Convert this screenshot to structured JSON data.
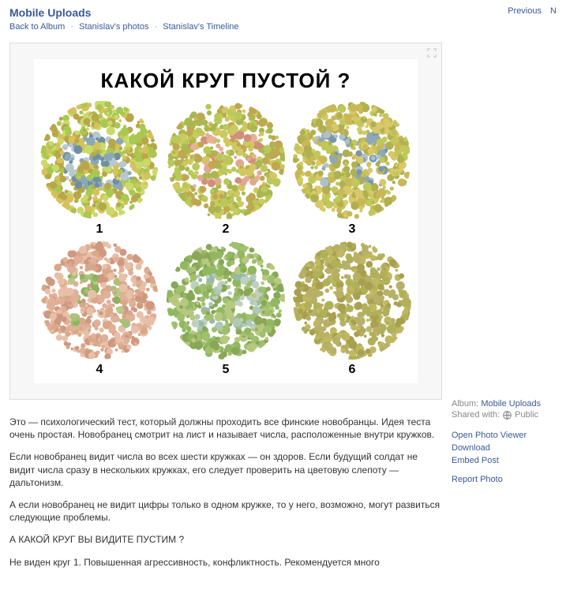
{
  "header": {
    "title": "Mobile Uploads",
    "breadcrumb": {
      "back": "Back to Album",
      "photos": "Stanislav's photos",
      "timeline": "Stanislav's Timeline"
    },
    "nav": {
      "previous": "Previous",
      "next": "N"
    }
  },
  "figure": {
    "title": "КАКОЙ КРУГ ПУСТОЙ ?",
    "plates": [
      {
        "label": "1",
        "digit": "6",
        "bg_colors": [
          "#c9d96a",
          "#a8c84f",
          "#d6c15c",
          "#b8a74a"
        ],
        "fg_colors": [
          "#8aa8b8",
          "#b8c8d0",
          "#6f8fa0"
        ]
      },
      {
        "label": "2",
        "digit": "23",
        "bg_colors": [
          "#b8c95a",
          "#d0c860",
          "#a8b84f",
          "#c0a850"
        ],
        "fg_colors": [
          "#e0a890",
          "#d09078",
          "#e8b098"
        ]
      },
      {
        "label": "3",
        "digit": "78",
        "bg_colors": [
          "#c0c85a",
          "#d8c868",
          "#b0b050",
          "#c8b858"
        ],
        "fg_colors": [
          "#90a8b0",
          "#b0c0c8",
          "#7898a8"
        ]
      },
      {
        "label": "4",
        "digit": "71",
        "bg_colors": [
          "#e0b098",
          "#d8a888",
          "#e8c0a8",
          "#d09880"
        ],
        "fg_colors": [
          "#a8c078",
          "#90b060",
          "#b8c888"
        ]
      },
      {
        "label": "5",
        "digit": "29",
        "bg_colors": [
          "#a0c070",
          "#90b860",
          "#b8c880",
          "#88a858"
        ],
        "fg_colors": [
          "#b0c8b8",
          "#98b8a8",
          "#c0d0c0"
        ]
      },
      {
        "label": "6",
        "digit": "",
        "bg_colors": [
          "#b0b058",
          "#c0b860",
          "#a8a050",
          "#b8b068"
        ],
        "fg_colors": []
      }
    ]
  },
  "description": {
    "p1": "Это — психологический тест, который должны проходить все финские новобранцы. Идея теста очень простая. Новобранец смотрит на лист и называет числа, расположенные внутри кружков.",
    "p2": "Если новобранец видит числа во всех шести кружках — он здоров. Если будущий солдат не видит числа сразу в нескольких кружках, его следует проверить на цветовую слепоту — дальтонизм.",
    "p3": "А если новобранец не видит цифры только в одном кружке, то у него, возможно, могут развиться следующие проблемы.",
    "p4": "А КАКОЙ КРУГ ВЫ ВИДИТЕ ПУСТИМ ?",
    "p5": "Не виден круг 1. Повышенная агрессивность, конфликтность. Рекомендуется много"
  },
  "sidebar": {
    "album_label": "Album:",
    "album_link": "Mobile Uploads",
    "shared_label": "Shared with:",
    "shared_value": "Public",
    "actions": {
      "open": "Open Photo Viewer",
      "download": "Download",
      "embed": "Embed Post",
      "report": "Report Photo"
    }
  }
}
